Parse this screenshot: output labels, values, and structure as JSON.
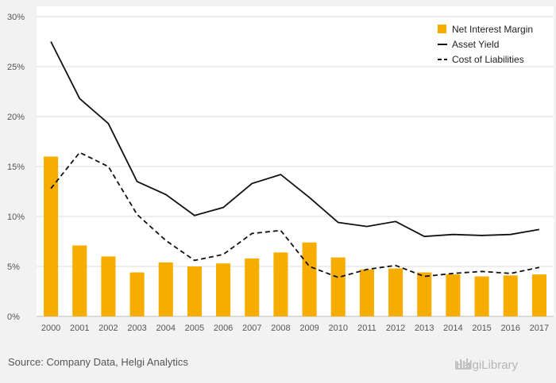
{
  "colors": {
    "bar": "#f6ad00",
    "line": "#111111",
    "grid": "#dcdcdc",
    "plot_bg": "#ffffff",
    "page_bg": "#f2f2f2"
  },
  "source_text": "Source: Company Data, Helgi Analytics",
  "logo_text": "HelgiLibrary",
  "logo_icon": "library-building-icon",
  "chart_data": {
    "type": "bar",
    "title": "",
    "xlabel": "",
    "ylabel": "",
    "ylim": [
      0,
      30
    ],
    "ytick_labels": [
      "0%",
      "5%",
      "10%",
      "15%",
      "20%",
      "25%",
      "30%"
    ],
    "ytick_values": [
      0,
      5,
      10,
      15,
      20,
      25,
      30
    ],
    "grid": true,
    "legend_position": "top-right",
    "categories": [
      "2000",
      "2001",
      "2002",
      "2003",
      "2004",
      "2005",
      "2006",
      "2007",
      "2008",
      "2009",
      "2010",
      "2011",
      "2012",
      "2013",
      "2014",
      "2015",
      "2016",
      "2017"
    ],
    "series": [
      {
        "name": "Net Interest Margin",
        "type": "bar",
        "values": [
          16.0,
          7.1,
          6.0,
          4.4,
          5.4,
          5.0,
          5.3,
          5.8,
          6.4,
          7.4,
          5.9,
          4.7,
          4.8,
          4.4,
          4.2,
          4.0,
          4.1,
          4.2
        ]
      },
      {
        "name": "Asset Yield",
        "type": "line",
        "style": "solid",
        "values": [
          27.5,
          21.8,
          19.3,
          13.5,
          12.2,
          10.1,
          10.9,
          13.3,
          14.2,
          11.9,
          9.4,
          9.0,
          9.5,
          8.0,
          8.2,
          8.1,
          8.2,
          8.7
        ]
      },
      {
        "name": "Cost of Liabilities",
        "type": "line",
        "style": "dashed",
        "values": [
          12.8,
          16.4,
          15.0,
          10.2,
          7.6,
          5.6,
          6.2,
          8.3,
          8.6,
          5.0,
          3.9,
          4.7,
          5.1,
          4.0,
          4.3,
          4.5,
          4.3,
          4.9
        ]
      }
    ]
  }
}
